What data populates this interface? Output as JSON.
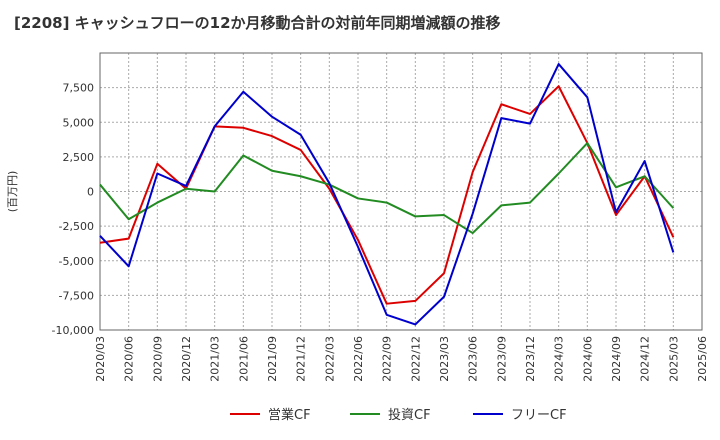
{
  "chart_data": {
    "type": "line",
    "title": "[2208]  キャッシュフローの12か月移動合計の対前年同期増減額の推移",
    "ylabel": "(百万円)",
    "xlabel": "",
    "ylim": [
      -10000,
      10000
    ],
    "yticks": [
      -10000,
      -7500,
      -5000,
      -2500,
      0,
      2500,
      5000,
      7500
    ],
    "ytick_labels": [
      "-10,000",
      "-7,500",
      "-5,000",
      "-2,500",
      "0",
      "2,500",
      "5,000",
      "7,500"
    ],
    "grid": true,
    "legend_position": "bottom",
    "x": [
      "2020/03",
      "2020/06",
      "2020/09",
      "2020/12",
      "2021/03",
      "2021/06",
      "2021/09",
      "2021/12",
      "2022/03",
      "2022/06",
      "2022/09",
      "2022/12",
      "2023/03",
      "2023/06",
      "2023/09",
      "2023/12",
      "2024/03",
      "2024/06",
      "2024/09",
      "2024/12",
      "2025/03",
      "2025/06"
    ],
    "series": [
      {
        "name": "営業CF",
        "color": "#dd0000",
        "values": [
          -3700,
          -3400,
          2000,
          200,
          4700,
          4600,
          4000,
          3000,
          200,
          -3500,
          -8100,
          -7900,
          -5900,
          1400,
          6300,
          5600,
          7600,
          3500,
          -1700,
          1100,
          -3300,
          null
        ]
      },
      {
        "name": "投資CF",
        "color": "#228b22",
        "values": [
          500,
          -2000,
          -800,
          200,
          0,
          2600,
          1500,
          1100,
          500,
          -500,
          -800,
          -1800,
          -1700,
          -3000,
          -1000,
          -800,
          1300,
          3500,
          300,
          1100,
          -1200,
          null
        ]
      },
      {
        "name": "フリーCF",
        "color": "#0000cc",
        "values": [
          -3200,
          -5400,
          1300,
          400,
          4700,
          7200,
          5400,
          4100,
          600,
          -4000,
          -8900,
          -9600,
          -7600,
          -1600,
          5300,
          4900,
          9200,
          6800,
          -1500,
          2200,
          -4400,
          null
        ]
      }
    ]
  }
}
